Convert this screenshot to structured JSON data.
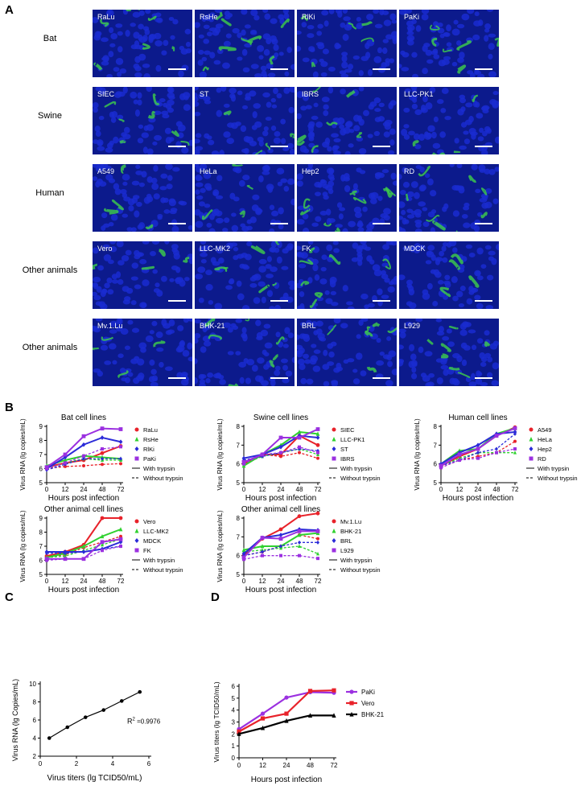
{
  "panels": {
    "A": "A",
    "B": "B",
    "C": "C",
    "D": "D"
  },
  "panel_a": {
    "rows": [
      {
        "label": "Bat",
        "tiles": [
          "RaLu",
          "RsHe",
          "RlKi",
          "PaKi"
        ]
      },
      {
        "label": "Swine",
        "tiles": [
          "SIEC",
          "ST",
          "IBRS",
          "LLC-PK1"
        ]
      },
      {
        "label": "Human",
        "tiles": [
          "A549",
          "HeLa",
          "Hep2",
          "RD"
        ]
      },
      {
        "label": "Other animals",
        "tiles": [
          "Vero",
          "LLC-MK2",
          "FK",
          "MDCK"
        ]
      },
      {
        "label": "Other animals",
        "tiles": [
          "Mv.1.Lu",
          "BHK-21",
          "BRL",
          "L929"
        ]
      }
    ],
    "colors": {
      "nuclei": "#1a2bd0",
      "background": "#0c1a8c",
      "stain": "#3fcf4a"
    }
  },
  "chart_data": [
    {
      "id": "b1",
      "type": "line",
      "title": "Bat cell lines",
      "xlabel": "Hours post infection",
      "ylabel": "Virus RNA (lg copies/mL)",
      "x": [
        0,
        12,
        24,
        48,
        72
      ],
      "ylim": [
        5,
        9
      ],
      "yticks": [
        5,
        6,
        7,
        8,
        9
      ],
      "legend_note": [
        "With trypsin",
        "Without trypsin"
      ],
      "series": [
        {
          "name": "RaLu",
          "color": "#e8222a",
          "marker": "circle",
          "with": [
            6.1,
            6.4,
            6.6,
            7.1,
            7.6
          ],
          "without": [
            6.0,
            6.15,
            6.2,
            6.3,
            6.35
          ]
        },
        {
          "name": "RsHe",
          "color": "#2fd12f",
          "marker": "triangle",
          "with": [
            6.2,
            6.6,
            6.9,
            6.8,
            6.7
          ],
          "without": [
            6.0,
            6.4,
            6.7,
            6.6,
            6.6
          ]
        },
        {
          "name": "RlKi",
          "color": "#2b2bd8",
          "marker": "diamond",
          "with": [
            6.0,
            6.8,
            7.7,
            8.2,
            7.9
          ],
          "without": [
            5.9,
            6.3,
            6.7,
            6.7,
            6.7
          ]
        },
        {
          "name": "PaKi",
          "color": "#9b30e0",
          "marker": "square",
          "with": [
            6.1,
            7.0,
            8.3,
            8.85,
            8.8
          ],
          "without": [
            6.0,
            6.4,
            6.9,
            7.4,
            7.55
          ]
        }
      ]
    },
    {
      "id": "b2",
      "type": "line",
      "title": "Swine cell lines",
      "xlabel": "Hours post infection",
      "ylabel": "Virus RNA (lg copies/mL)",
      "x": [
        0,
        12,
        24,
        48,
        72
      ],
      "ylim": [
        5,
        8
      ],
      "yticks": [
        5,
        6,
        7,
        8
      ],
      "legend_note": [
        "With trypsin",
        "Without trypsin"
      ],
      "series": [
        {
          "name": "SIEC",
          "color": "#e8222a",
          "marker": "circle",
          "with": [
            6.0,
            6.5,
            6.5,
            7.5,
            7.0
          ],
          "without": [
            6.1,
            6.5,
            6.4,
            6.6,
            6.3
          ]
        },
        {
          "name": "LLC-PK1",
          "color": "#2fd12f",
          "marker": "triangle",
          "with": [
            5.9,
            6.5,
            7.0,
            7.7,
            7.6
          ],
          "without": [
            6.0,
            6.4,
            6.6,
            6.8,
            6.5
          ]
        },
        {
          "name": "ST",
          "color": "#2b2bd8",
          "marker": "diamond",
          "with": [
            6.3,
            6.5,
            6.9,
            7.5,
            7.4
          ],
          "without": [
            6.2,
            6.4,
            6.6,
            6.8,
            6.7
          ]
        },
        {
          "name": "IBRS",
          "color": "#9b30e0",
          "marker": "square",
          "with": [
            6.1,
            6.5,
            7.4,
            7.4,
            7.85
          ],
          "without": [
            6.0,
            6.5,
            6.6,
            6.9,
            6.6
          ]
        }
      ]
    },
    {
      "id": "b3",
      "type": "line",
      "title": "Human cell lines",
      "xlabel": "Hours post infection",
      "ylabel": "Virus RNA (lg copies/mL)",
      "x": [
        0,
        12,
        24,
        48,
        72
      ],
      "ylim": [
        5,
        8
      ],
      "yticks": [
        5,
        6,
        7,
        8
      ],
      "legend_note": [
        "With trypsin",
        "Without trypsin"
      ],
      "series": [
        {
          "name": "A549",
          "color": "#e8222a",
          "marker": "circle",
          "with": [
            5.9,
            6.4,
            6.8,
            7.5,
            7.95
          ],
          "without": [
            5.8,
            6.2,
            6.4,
            6.6,
            7.2
          ]
        },
        {
          "name": "HeLa",
          "color": "#2fd12f",
          "marker": "triangle",
          "with": [
            6.0,
            6.7,
            6.8,
            7.6,
            7.9
          ],
          "without": [
            5.9,
            6.3,
            6.6,
            6.6,
            6.6
          ]
        },
        {
          "name": "Hep2",
          "color": "#2b2bd8",
          "marker": "diamond",
          "with": [
            6.0,
            6.6,
            7.0,
            7.6,
            7.7
          ],
          "without": [
            5.9,
            6.2,
            6.6,
            6.8,
            7.6
          ]
        },
        {
          "name": "RD",
          "color": "#9b30e0",
          "marker": "square",
          "with": [
            5.9,
            6.5,
            6.8,
            7.5,
            7.9
          ],
          "without": [
            5.8,
            6.2,
            6.3,
            6.6,
            6.8
          ]
        }
      ]
    },
    {
      "id": "b4",
      "type": "line",
      "title": "Other animal cell lines",
      "xlabel": "Hours post infection",
      "ylabel": "Virus RNA (lg copies/mL)",
      "x": [
        0,
        12,
        24,
        48,
        72
      ],
      "ylim": [
        5,
        9
      ],
      "yticks": [
        5,
        6,
        7,
        8,
        9
      ],
      "legend_note": [
        "With trypsin",
        "Without trypsin"
      ],
      "series": [
        {
          "name": "Vero",
          "color": "#e8222a",
          "marker": "circle",
          "with": [
            6.3,
            6.6,
            7.1,
            9.0,
            9.0
          ],
          "without": [
            6.2,
            6.4,
            6.9,
            7.3,
            7.7
          ]
        },
        {
          "name": "LLC-MK2",
          "color": "#2fd12f",
          "marker": "triangle",
          "with": [
            6.2,
            6.5,
            7.0,
            7.7,
            8.2
          ],
          "without": [
            6.2,
            6.3,
            6.7,
            7.1,
            7.5
          ]
        },
        {
          "name": "MDCK",
          "color": "#2b2bd8",
          "marker": "diamond",
          "with": [
            6.6,
            6.6,
            6.6,
            6.8,
            7.3
          ],
          "without": [
            6.5,
            6.5,
            6.6,
            6.8,
            7.0
          ]
        },
        {
          "name": "FK",
          "color": "#9b30e0",
          "marker": "square",
          "with": [
            6.1,
            6.1,
            6.1,
            7.3,
            7.5
          ],
          "without": [
            6.0,
            6.1,
            6.1,
            6.7,
            7.0
          ]
        }
      ]
    },
    {
      "id": "b5",
      "type": "line",
      "title": "Other animal cell lines",
      "xlabel": "Hours post infection",
      "ylabel": "Virus RNA (lg copies/mL)",
      "x": [
        0,
        12,
        24,
        48,
        72
      ],
      "ylim": [
        5,
        8
      ],
      "yticks": [
        5,
        6,
        7,
        8
      ],
      "legend_note": [
        "With trypsin",
        "Without trypsin"
      ],
      "series": [
        {
          "name": "Mv.1.Lu",
          "color": "#e8222a",
          "marker": "circle",
          "with": [
            6.0,
            6.9,
            7.4,
            8.1,
            8.25
          ],
          "without": [
            6.0,
            6.2,
            6.5,
            7.1,
            6.9
          ]
        },
        {
          "name": "BHK-21",
          "color": "#2fd12f",
          "marker": "triangle",
          "with": [
            6.3,
            6.5,
            6.5,
            7.1,
            7.2
          ],
          "without": [
            6.2,
            6.3,
            6.4,
            6.5,
            6.1
          ]
        },
        {
          "name": "BRL",
          "color": "#2b2bd8",
          "marker": "diamond",
          "with": [
            6.1,
            6.95,
            7.1,
            7.4,
            7.35
          ],
          "without": [
            6.0,
            6.2,
            6.5,
            6.7,
            6.7
          ]
        },
        {
          "name": "L929",
          "color": "#9b30e0",
          "marker": "square",
          "with": [
            5.9,
            6.95,
            6.9,
            7.3,
            7.3
          ],
          "without": [
            5.8,
            6.0,
            6.0,
            6.0,
            5.85
          ]
        }
      ]
    },
    {
      "id": "c",
      "type": "scatter",
      "title": "",
      "xlabel": "Virus titers (lg TCID50/mL)",
      "ylabel": "Virus RNA (lg Copies/mL)",
      "xlim": [
        0,
        6
      ],
      "ylim": [
        2,
        10
      ],
      "xticks": [
        0,
        2,
        4,
        6
      ],
      "yticks": [
        2,
        4,
        6,
        8,
        10
      ],
      "annotation": {
        "base": "R",
        "sup": "2",
        "text": " =0.9976"
      },
      "x": [
        0.5,
        1.5,
        2.5,
        3.5,
        4.5,
        5.5
      ],
      "y": [
        4.0,
        5.2,
        6.3,
        7.1,
        8.1,
        9.1
      ]
    },
    {
      "id": "d",
      "type": "line",
      "title": "",
      "xlabel": "Hours post infection",
      "ylabel": "Virus titers (lg TCID50/mL)",
      "x": [
        0,
        12,
        24,
        48,
        72
      ],
      "ylim": [
        0,
        6
      ],
      "yticks": [
        0,
        1,
        2,
        3,
        4,
        5,
        6
      ],
      "series": [
        {
          "name": "PaKi",
          "color": "#9b30e0",
          "marker": "circle",
          "values": [
            2.4,
            3.7,
            5.05,
            5.5,
            5.45
          ]
        },
        {
          "name": "Vero",
          "color": "#e8222a",
          "marker": "square",
          "values": [
            2.2,
            3.3,
            3.7,
            5.6,
            5.65
          ]
        },
        {
          "name": "BHK-21",
          "color": "#000000",
          "marker": "triangle",
          "values": [
            2.0,
            2.5,
            3.1,
            3.55,
            3.55
          ]
        }
      ]
    }
  ]
}
